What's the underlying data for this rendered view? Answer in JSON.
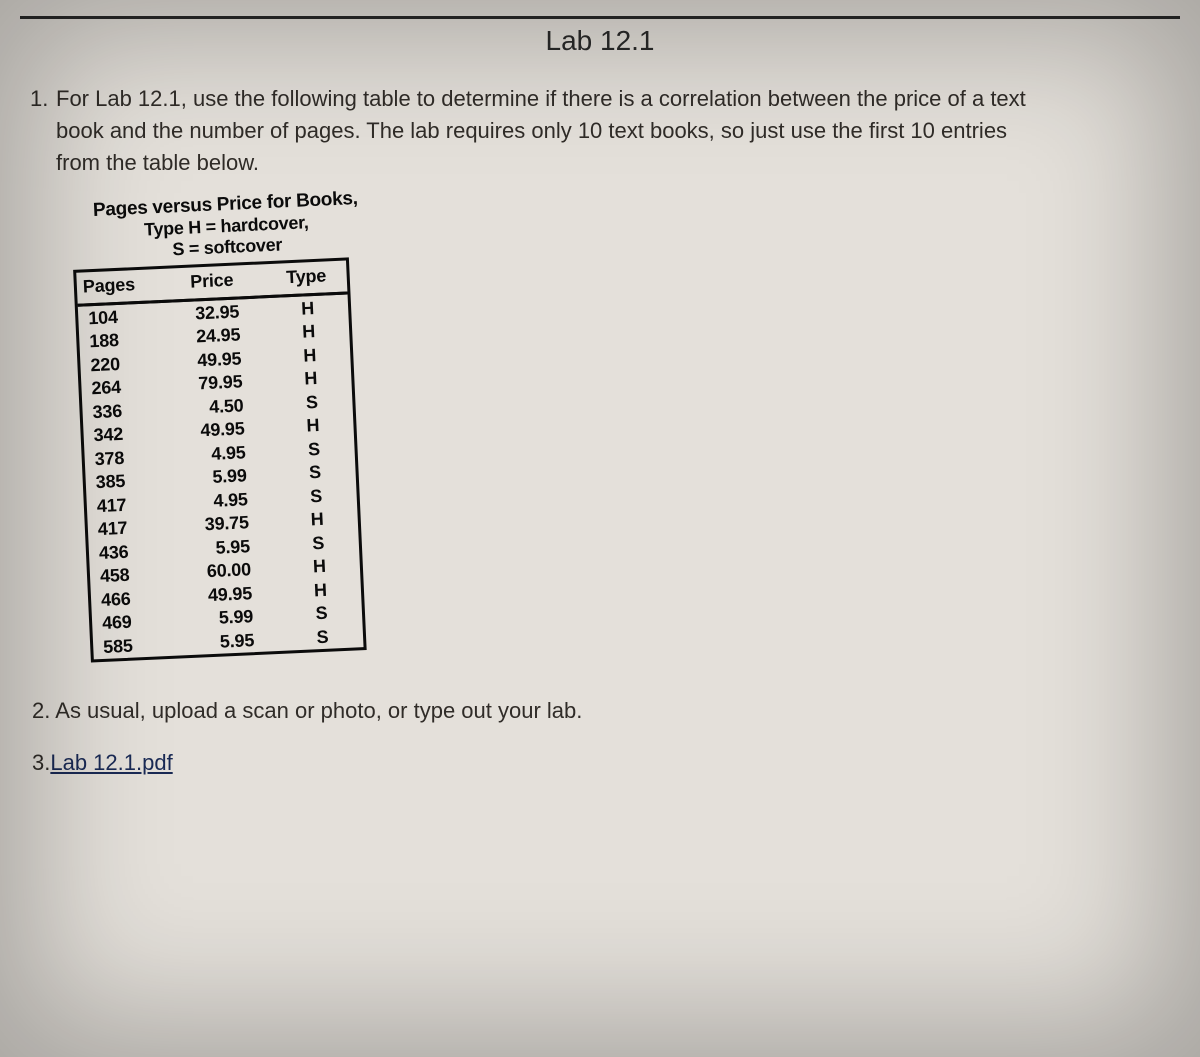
{
  "title": "Lab 12.1",
  "item1": {
    "number": "1.",
    "text_line1": "For Lab 12.1, use the following table to determine if there is a correlation between the price of a text",
    "text_line2": "book and the number of pages. The lab requires only 10 text books, so just use the first 10 entries",
    "text_line3": "from the table below."
  },
  "table": {
    "caption_line1": "Pages versus Price for Books,",
    "caption_line2": "Type H = hardcover,",
    "caption_line3": "S = softcover",
    "columns": [
      "Pages",
      "Price",
      "Type"
    ],
    "rows": [
      [
        "104",
        "32.95",
        "H"
      ],
      [
        "188",
        "24.95",
        "H"
      ],
      [
        "220",
        "49.95",
        "H"
      ],
      [
        "264",
        "79.95",
        "H"
      ],
      [
        "336",
        "4.50",
        "S"
      ],
      [
        "342",
        "49.95",
        "H"
      ],
      [
        "378",
        "4.95",
        "S"
      ],
      [
        "385",
        "5.99",
        "S"
      ],
      [
        "417",
        "4.95",
        "S"
      ],
      [
        "417",
        "39.75",
        "H"
      ],
      [
        "436",
        "5.95",
        "S"
      ],
      [
        "458",
        "60.00",
        "H"
      ],
      [
        "466",
        "49.95",
        "H"
      ],
      [
        "469",
        "5.99",
        "S"
      ],
      [
        "585",
        "5.95",
        "S"
      ]
    ]
  },
  "item2": {
    "number": "2.",
    "text": "As usual, upload a scan or photo, or type out your lab."
  },
  "item3": {
    "number": "3.",
    "link_text": "Lab 12.1.pdf"
  },
  "colors": {
    "background": "#e4e0da",
    "text": "#302c28",
    "table_border": "#0b0b0b",
    "link": "#1a2a55"
  }
}
